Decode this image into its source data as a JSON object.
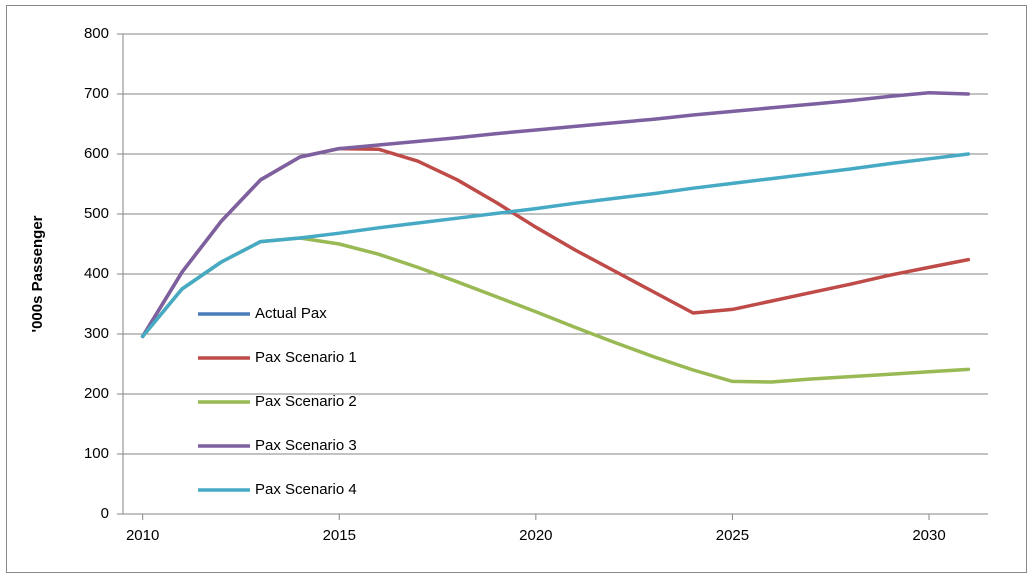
{
  "chart_data": {
    "type": "line",
    "ylabel": "'000s Passenger",
    "x": [
      2010,
      2011,
      2012,
      2013,
      2014,
      2015,
      2016,
      2017,
      2018,
      2019,
      2020,
      2021,
      2022,
      2023,
      2024,
      2025,
      2026,
      2027,
      2028,
      2029,
      2030,
      2031
    ],
    "xlim": [
      2009.5,
      2031.5
    ],
    "xticks": [
      2010,
      2015,
      2020,
      2025,
      2030
    ],
    "ylim": [
      0,
      800
    ],
    "yticks": [
      0,
      100,
      200,
      300,
      400,
      500,
      600,
      700,
      800
    ],
    "grid": true,
    "legend": "left",
    "series": [
      {
        "name": "Actual Pax",
        "color": "#4a7ebb",
        "values": [
          296,
          null,
          null,
          null,
          null,
          null,
          null,
          null,
          null,
          null,
          null,
          null,
          null,
          null,
          null,
          null,
          null,
          null,
          null,
          null,
          null,
          null
        ]
      },
      {
        "name": "Pax Scenario 1",
        "color": "#be4b48",
        "values": [
          296,
          403,
          488,
          557,
          595,
          609,
          608,
          588,
          557,
          519,
          478,
          440,
          405,
          370,
          335,
          341,
          355,
          369,
          383,
          398,
          411,
          424
        ]
      },
      {
        "name": "Pax Scenario 2",
        "color": "#98b954",
        "values": [
          296,
          375,
          420,
          454,
          460,
          450,
          433,
          411,
          387,
          362,
          337,
          311,
          286,
          262,
          240,
          221,
          220,
          225,
          229,
          233,
          237,
          241
        ]
      },
      {
        "name": "Pax Scenario 3",
        "color": "#7d60a0",
        "values": [
          296,
          403,
          488,
          557,
          595,
          609,
          615,
          621,
          627,
          634,
          640,
          646,
          652,
          658,
          665,
          671,
          677,
          683,
          689,
          696,
          702,
          700
        ]
      },
      {
        "name": "Pax Scenario 4",
        "color": "#46aac5",
        "values": [
          296,
          375,
          420,
          454,
          460,
          468,
          477,
          485,
          493,
          501,
          509,
          518,
          526,
          534,
          543,
          551,
          559,
          567,
          575,
          584,
          592,
          600
        ]
      }
    ]
  }
}
